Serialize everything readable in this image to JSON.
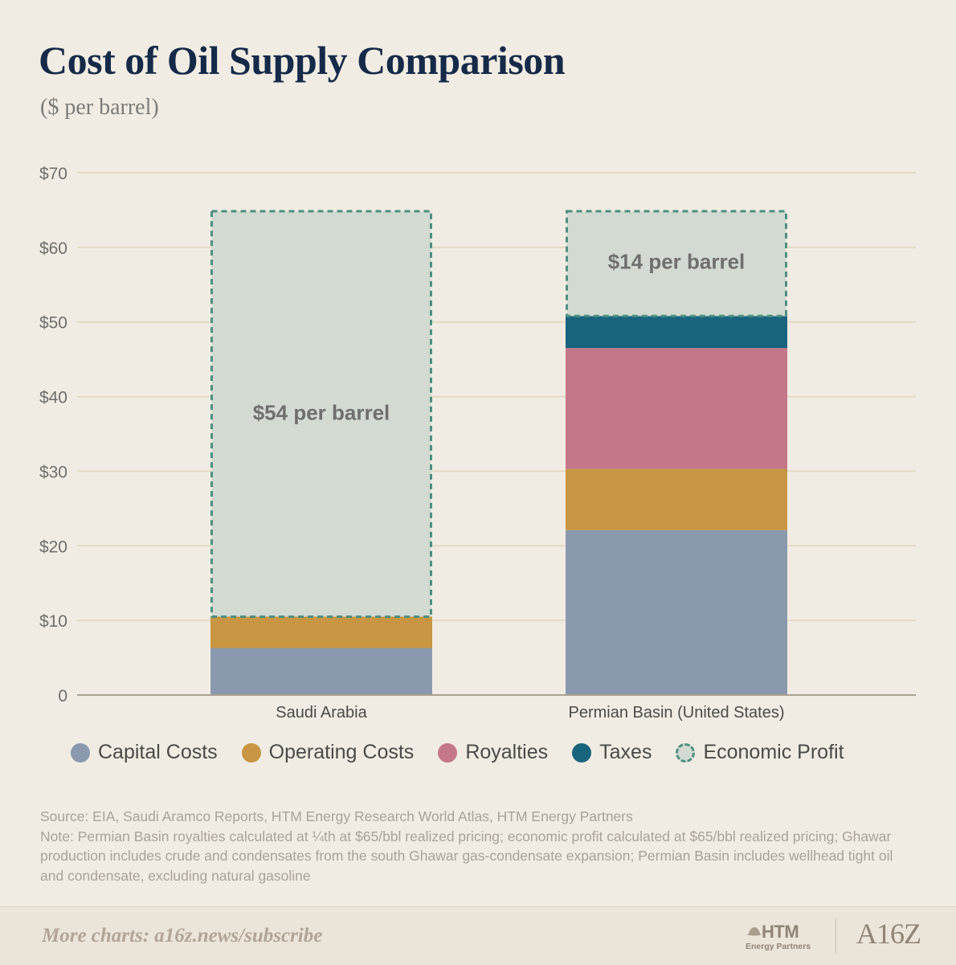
{
  "chart_data": {
    "type": "bar",
    "stacked": true,
    "title": "Cost of Oil Supply Comparison",
    "subtitle": "($ per barrel)",
    "categories": [
      "Saudi Arabia",
      "Permian Basin (United States)"
    ],
    "series": [
      {
        "name": "Capital Costs",
        "color": "#8a99ad",
        "values": [
          6.3,
          22.1
        ]
      },
      {
        "name": "Operating Costs",
        "color": "#c89642",
        "values": [
          4.2,
          8.2
        ]
      },
      {
        "name": "Royalties",
        "color": "#c47788",
        "values": [
          0,
          16.2
        ]
      },
      {
        "name": "Taxes",
        "color": "#18647c",
        "values": [
          0,
          4.3
        ]
      },
      {
        "name": "Economic Profit",
        "color": "#d2dad2",
        "dashed": true,
        "values": [
          54.5,
          14.2
        ]
      }
    ],
    "bar_annotations": [
      "$54 per barrel",
      "$14 per barrel"
    ],
    "yticks": [
      {
        "value": 0,
        "label": "0"
      },
      {
        "value": 10,
        "label": "$10"
      },
      {
        "value": 20,
        "label": "$20"
      },
      {
        "value": 30,
        "label": "$30"
      },
      {
        "value": 40,
        "label": "$40"
      },
      {
        "value": 50,
        "label": "$50"
      },
      {
        "value": 60,
        "label": "$60"
      },
      {
        "value": 70,
        "label": "$70"
      }
    ],
    "ylim": [
      0,
      70
    ],
    "grid": true,
    "legend_position": "bottom"
  },
  "notes": {
    "source": "Source: EIA, Saudi Aramco Reports, HTM Energy Research World Atlas, HTM Energy Partners",
    "note": "Note: Permian Basin royalties calculated at ¼th at $65/bbl realized pricing; economic profit calculated at $65/bbl realized pricing; Ghawar production includes crude and condensates from the south Ghawar gas-condensate expansion; Permian Basin includes wellhead tight oil and condensate, excluding natural gasoline"
  },
  "footer": {
    "cta": "More charts: a16z.news/subscribe",
    "logo_htm": "HTM",
    "logo_htm_sub": "Energy Partners",
    "logo_a16z": "A16Z"
  }
}
